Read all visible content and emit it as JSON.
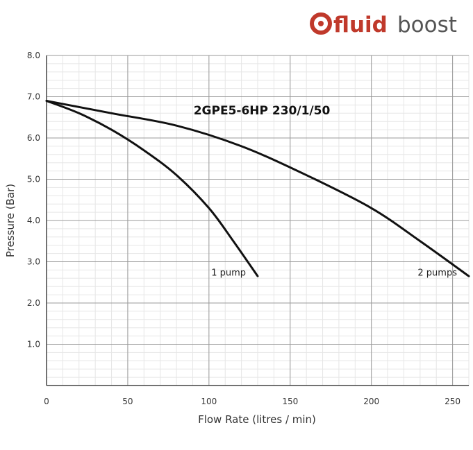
{
  "brand": {
    "bold": "fluid",
    "light": "boost",
    "color": "#c0392b"
  },
  "chart_data": {
    "type": "line",
    "title": "2GPE5-6HP 230/1/50",
    "xlabel": "Flow Rate (litres / min)",
    "ylabel": "Pressure (Bar)",
    "xlim": [
      0,
      260
    ],
    "ylim": [
      0,
      8
    ],
    "x_ticks": [
      0,
      50,
      100,
      150,
      200,
      250
    ],
    "x_tick_labels": [
      "0",
      "50",
      "100",
      "150",
      "200",
      "250"
    ],
    "y_ticks": [
      1,
      2,
      3,
      4,
      5,
      6,
      7,
      8
    ],
    "y_tick_labels": [
      "1.0",
      "2.0",
      "3.0",
      "4.0",
      "5.0",
      "6.0",
      "7.0",
      "8.0"
    ],
    "grid": true,
    "series": [
      {
        "name": "1 pump",
        "color": "#111111",
        "points": [
          [
            0,
            6.9
          ],
          [
            20,
            6.6
          ],
          [
            40,
            6.2
          ],
          [
            60,
            5.7
          ],
          [
            80,
            5.1
          ],
          [
            100,
            4.3
          ],
          [
            115,
            3.5
          ],
          [
            130,
            2.65
          ]
        ]
      },
      {
        "name": "2 pumps",
        "color": "#111111",
        "points": [
          [
            0,
            6.9
          ],
          [
            40,
            6.6
          ],
          [
            80,
            6.3
          ],
          [
            120,
            5.8
          ],
          [
            160,
            5.1
          ],
          [
            200,
            4.3
          ],
          [
            230,
            3.5
          ],
          [
            260,
            2.65
          ]
        ]
      }
    ]
  }
}
